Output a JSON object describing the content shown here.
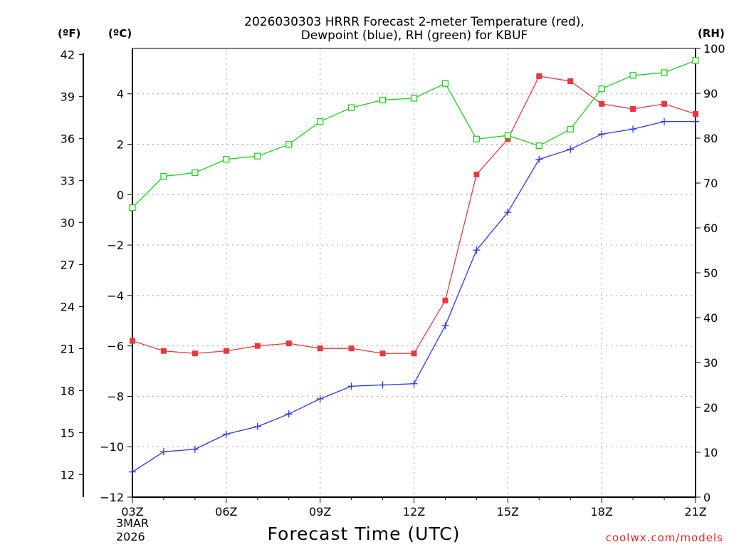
{
  "chart_data": {
    "type": "line",
    "title_line1": "2026030303 HRRR Forecast 2-meter Temperature (red),",
    "title_line2": "Dewpoint (blue), RH (green) for KBUF",
    "xlabel": "Forecast Time (UTC)",
    "credit": "coolwx.com/models",
    "date_label_1": "3MAR",
    "date_label_2": "2026",
    "units": {
      "fahrenheit": "(ºF)",
      "celsius": "(ºC)",
      "rh": "(RH)"
    },
    "x_hours": [
      0,
      1,
      2,
      3,
      4,
      5,
      6,
      7,
      8,
      9,
      10,
      11,
      12,
      13,
      14,
      15,
      16,
      17,
      18
    ],
    "x_ticks": [
      {
        "hour": 0,
        "label": "03Z"
      },
      {
        "hour": 3,
        "label": "06Z"
      },
      {
        "hour": 6,
        "label": "09Z"
      },
      {
        "hour": 9,
        "label": "12Z"
      },
      {
        "hour": 12,
        "label": "15Z"
      },
      {
        "hour": 15,
        "label": "18Z"
      },
      {
        "hour": 18,
        "label": "21Z"
      }
    ],
    "celsius_range": [
      -12,
      5.8
    ],
    "celsius_ticks": [
      "-12",
      "-10",
      "-8",
      "-6",
      "-4",
      "-2",
      "0",
      "2",
      "4"
    ],
    "fahrenheit_ticks": [
      "12",
      "15",
      "18",
      "21",
      "24",
      "27",
      "30",
      "33",
      "36",
      "39",
      "42"
    ],
    "rh_range": [
      0,
      100
    ],
    "rh_ticks": [
      "0",
      "10",
      "20",
      "30",
      "40",
      "50",
      "60",
      "70",
      "80",
      "90",
      "100"
    ],
    "series": [
      {
        "name": "Temperature",
        "color": "#e8383c",
        "marker": "filled-square",
        "values": [
          -5.8,
          -6.2,
          -6.3,
          -6.2,
          -6.0,
          -5.9,
          -6.1,
          -6.1,
          -6.3,
          -6.3,
          -4.2,
          0.8,
          2.2,
          4.7,
          4.5,
          3.6,
          3.4,
          3.6,
          3.2
        ]
      },
      {
        "name": "Dewpoint",
        "color": "#2838e0",
        "marker": "plus",
        "values": [
          -11.0,
          -10.2,
          -10.1,
          -9.5,
          -9.2,
          -8.7,
          -8.1,
          -7.6,
          -7.55,
          -7.5,
          -5.2,
          -2.2,
          -0.7,
          1.4,
          1.8,
          2.4,
          2.6,
          2.9,
          2.9
        ]
      },
      {
        "name": "RH",
        "color": "#20d020",
        "marker": "open-square",
        "values": [
          64.5,
          71.5,
          72.3,
          75.3,
          76.0,
          78.6,
          83.7,
          86.8,
          88.5,
          88.9,
          92.2,
          79.8,
          80.6,
          78.3,
          82.0,
          91.0,
          94.0,
          94.6,
          97.3
        ]
      }
    ]
  }
}
